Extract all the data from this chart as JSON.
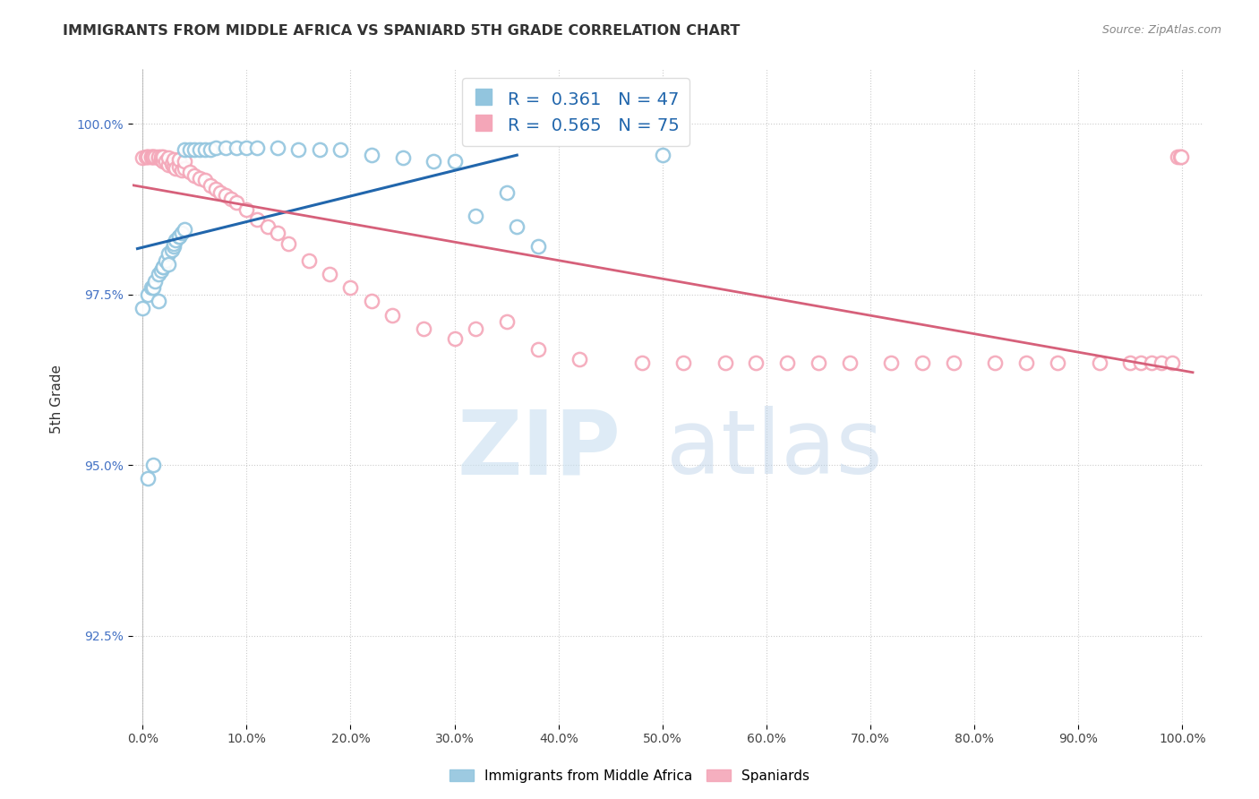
{
  "title": "IMMIGRANTS FROM MIDDLE AFRICA VS SPANIARD 5TH GRADE CORRELATION CHART",
  "source": "Source: ZipAtlas.com",
  "ylabel": "5th Grade",
  "yticks": [
    92.5,
    95.0,
    97.5,
    100.0
  ],
  "ytick_labels": [
    "92.5%",
    "95.0%",
    "97.5%",
    "100.0%"
  ],
  "xticks": [
    0.0,
    0.1,
    0.2,
    0.3,
    0.4,
    0.5,
    0.6,
    0.7,
    0.8,
    0.9,
    1.0
  ],
  "xtick_labels": [
    "0.0%",
    "10.0%",
    "20.0%",
    "30.0%",
    "40.0%",
    "50.0%",
    "60.0%",
    "70.0%",
    "80.0%",
    "90.0%",
    "100.0%"
  ],
  "xlim": [
    -0.01,
    1.02
  ],
  "ylim": [
    91.2,
    100.8
  ],
  "blue_color": "#92c5de",
  "pink_color": "#f4a6b8",
  "blue_line_color": "#2166ac",
  "pink_line_color": "#d6607a",
  "legend_blue": "R =  0.361   N = 47",
  "legend_pink": "R =  0.565   N = 75",
  "blue_r_color": "#2166ac",
  "pink_r_color": "#d6607a",
  "blue_x": [
    0.0,
    0.005,
    0.005,
    0.008,
    0.01,
    0.01,
    0.012,
    0.015,
    0.015,
    0.018,
    0.02,
    0.02,
    0.022,
    0.025,
    0.025,
    0.028,
    0.03,
    0.03,
    0.032,
    0.035,
    0.035,
    0.038,
    0.04,
    0.04,
    0.045,
    0.05,
    0.055,
    0.06,
    0.065,
    0.07,
    0.08,
    0.09,
    0.1,
    0.11,
    0.13,
    0.15,
    0.17,
    0.19,
    0.22,
    0.25,
    0.28,
    0.3,
    0.32,
    0.35,
    0.36,
    0.38,
    0.5
  ],
  "blue_y": [
    97.3,
    97.5,
    94.8,
    97.6,
    97.6,
    95.0,
    97.7,
    97.8,
    97.4,
    97.85,
    97.9,
    97.9,
    98.0,
    98.1,
    97.95,
    98.15,
    98.2,
    98.25,
    98.3,
    98.35,
    98.35,
    98.4,
    98.45,
    99.62,
    99.62,
    99.62,
    99.62,
    99.62,
    99.62,
    99.65,
    99.65,
    99.65,
    99.65,
    99.65,
    99.65,
    99.62,
    99.62,
    99.62,
    99.55,
    99.5,
    99.45,
    99.45,
    98.65,
    99.0,
    98.5,
    98.2,
    99.55
  ],
  "pink_x": [
    0.0,
    0.003,
    0.005,
    0.005,
    0.008,
    0.008,
    0.01,
    0.01,
    0.012,
    0.015,
    0.015,
    0.018,
    0.018,
    0.02,
    0.02,
    0.022,
    0.025,
    0.025,
    0.028,
    0.03,
    0.03,
    0.032,
    0.035,
    0.035,
    0.038,
    0.04,
    0.04,
    0.045,
    0.05,
    0.055,
    0.06,
    0.065,
    0.07,
    0.075,
    0.08,
    0.085,
    0.09,
    0.1,
    0.11,
    0.12,
    0.13,
    0.14,
    0.16,
    0.18,
    0.2,
    0.22,
    0.24,
    0.27,
    0.3,
    0.32,
    0.35,
    0.38,
    0.42,
    0.48,
    0.52,
    0.56,
    0.59,
    0.62,
    0.65,
    0.68,
    0.72,
    0.75,
    0.78,
    0.82,
    0.85,
    0.88,
    0.92,
    0.95,
    0.96,
    0.97,
    0.98,
    0.99,
    0.995,
    0.998,
    0.999
  ],
  "pink_y": [
    99.5,
    99.52,
    99.52,
    99.52,
    99.52,
    99.52,
    99.52,
    99.52,
    99.52,
    99.5,
    99.52,
    99.48,
    99.52,
    99.45,
    99.52,
    99.45,
    99.4,
    99.5,
    99.42,
    99.38,
    99.48,
    99.35,
    99.38,
    99.48,
    99.32,
    99.35,
    99.45,
    99.3,
    99.25,
    99.2,
    99.18,
    99.1,
    99.05,
    99.0,
    98.95,
    98.9,
    98.85,
    98.75,
    98.6,
    98.5,
    98.4,
    98.25,
    98.0,
    97.8,
    97.6,
    97.4,
    97.2,
    97.0,
    96.85,
    97.0,
    97.1,
    96.7,
    96.55,
    96.5,
    96.5,
    96.5,
    96.5,
    96.5,
    96.5,
    96.5,
    96.5,
    96.5,
    96.5,
    96.5,
    96.5,
    96.5,
    96.5,
    96.5,
    96.5,
    96.5,
    96.5,
    96.5,
    99.52,
    99.52,
    99.52
  ]
}
